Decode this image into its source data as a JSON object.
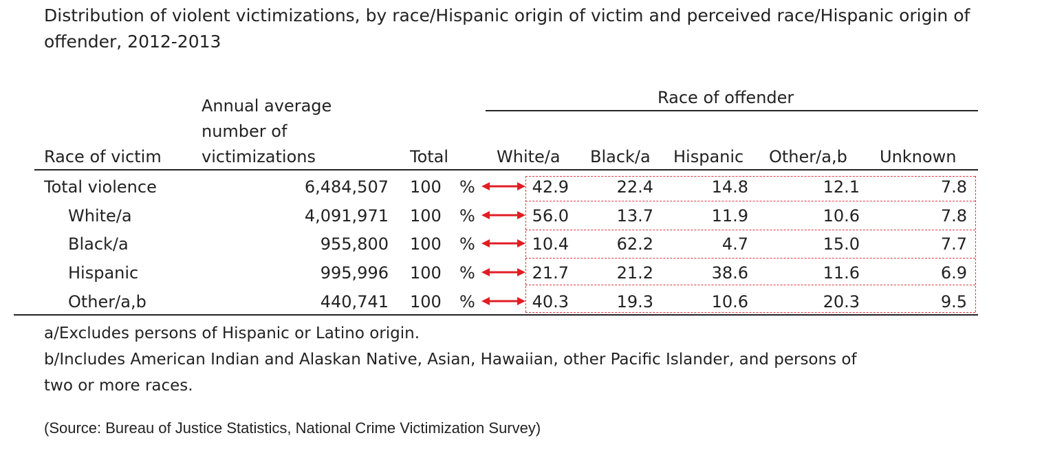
{
  "title_line1": "Distribution of violent victimizations, by race/Hispanic origin of victim and perceived race/Hispanic origin of",
  "title_line2": "offender, 2012-2013",
  "headers": {
    "race_of_victim": "Race of victim",
    "annual_line1": "Annual average",
    "annual_line2": "number of",
    "annual_line3": "victimizations",
    "total": "Total",
    "race_of_offender": "Race of offender",
    "white": "White/a",
    "black": "Black/a",
    "hispanic": "Hispanic",
    "other": "Other/a,b",
    "unknown": "Unknown"
  },
  "rows": [
    {
      "label": "Total violence",
      "number": "6,484,507",
      "total": "100",
      "pct": "%",
      "white": "42.9",
      "black": "22.4",
      "hispanic": "14.8",
      "other": "12.1",
      "unknown": "7.8"
    },
    {
      "label": "White/a",
      "number": "4,091,971",
      "total": "100",
      "pct": "%",
      "white": "56.0",
      "black": "13.7",
      "hispanic": "11.9",
      "other": "10.6",
      "unknown": "7.8"
    },
    {
      "label": "Black/a",
      "number": "955,800",
      "total": "100",
      "pct": "%",
      "white": "10.4",
      "black": "62.2",
      "hispanic": "4.7",
      "other": "15.0",
      "unknown": "7.7"
    },
    {
      "label": "Hispanic",
      "number": "995,996",
      "total": "100",
      "pct": "%",
      "white": "21.7",
      "black": "21.2",
      "hispanic": "38.6",
      "other": "11.6",
      "unknown": "6.9"
    },
    {
      "label": "Other/a,b",
      "number": "440,741",
      "total": "100",
      "pct": "%",
      "white": "40.3",
      "black": "19.3",
      "hispanic": "10.6",
      "other": "20.3",
      "unknown": "9.5"
    }
  ],
  "notes": {
    "a": "a/Excludes persons of Hispanic or Latino origin.",
    "b_line1": "b/Includes American Indian and Alaskan Native, Asian, Hawaiian, other Pacific Islander, and persons of",
    "b_line2": "two or more races.",
    "source": "(Source: Bureau of Justice Statistics, National Crime Victimization Survey)"
  },
  "colors": {
    "arrow": "#e11d24",
    "dashed_box": "#d9393f",
    "text": "#222222"
  }
}
